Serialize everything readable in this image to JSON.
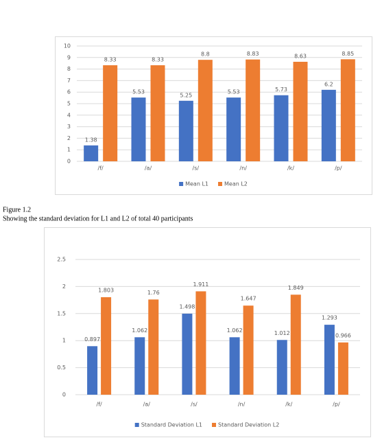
{
  "captions": {
    "figure": "Figure 1.2",
    "description": "Showing the standard deviation for L1 and L2 of total 40 participants"
  },
  "chart_data": [
    {
      "type": "bar",
      "categories": [
        "/f/",
        "/a/",
        "/s/",
        "/n/",
        "/k/",
        "/p/"
      ],
      "series": [
        {
          "name": "Mean L1",
          "color": "#4472c4",
          "values": [
            1.38,
            5.53,
            5.25,
            5.53,
            5.73,
            6.2
          ]
        },
        {
          "name": "Mean L2",
          "color": "#ed7d31",
          "values": [
            8.33,
            8.33,
            8.8,
            8.83,
            8.63,
            8.85
          ]
        }
      ],
      "ylim": [
        0,
        10
      ],
      "yticks": [
        0,
        1,
        2,
        3,
        4,
        5,
        6,
        7,
        8,
        9,
        10
      ],
      "grid": true,
      "legend": "bottom"
    },
    {
      "type": "bar",
      "categories": [
        "/f/",
        "/a/",
        "/s/",
        "/n/",
        "/k/",
        "/p/"
      ],
      "series": [
        {
          "name": "Standard Deviation L1",
          "color": "#4472c4",
          "values": [
            0.897,
            1.062,
            1.498,
            1.062,
            1.012,
            1.293
          ]
        },
        {
          "name": "Standard Deviation L2",
          "color": "#ed7d31",
          "values": [
            1.803,
            1.76,
            1.911,
            1.647,
            1.849,
            0.966
          ]
        }
      ],
      "ylim": [
        0,
        2.5
      ],
      "yticks": [
        0,
        0.5,
        1,
        1.5,
        2,
        2.5
      ],
      "grid": true,
      "legend": "bottom"
    }
  ]
}
